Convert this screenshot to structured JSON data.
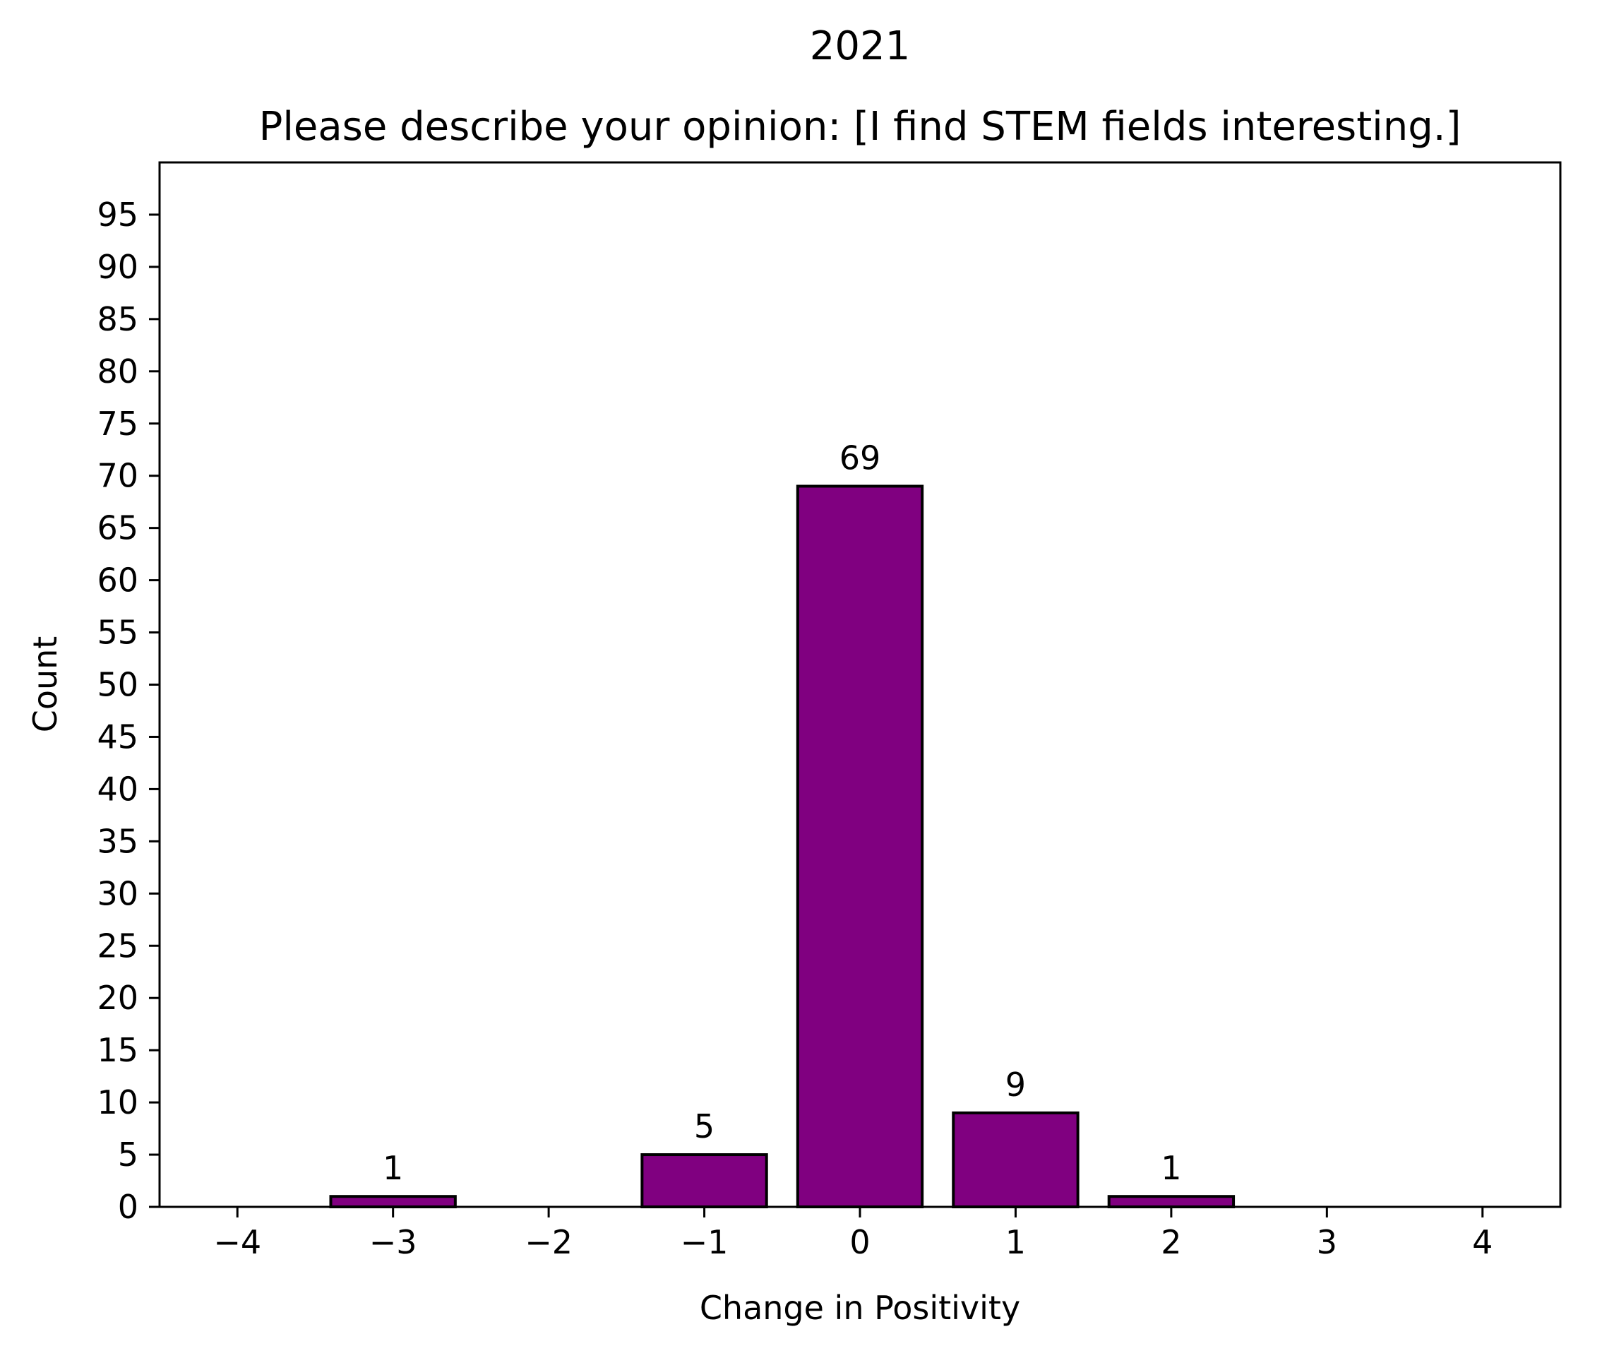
{
  "chart_data": {
    "type": "bar",
    "suptitle": "2021",
    "title": "Please describe your opinion: [I find STEM fields interesting.]",
    "xlabel": "Change in Positivity",
    "ylabel": "Count",
    "x": [
      -3,
      -1,
      0,
      1,
      2
    ],
    "values": [
      1,
      5,
      69,
      9,
      1
    ],
    "data_labels": [
      "1",
      "5",
      "69",
      "9",
      "1"
    ],
    "xlim": [
      -4.5,
      4.5
    ],
    "ylim": [
      0,
      100
    ],
    "x_ticks": [
      -4,
      -3,
      -2,
      -1,
      0,
      1,
      2,
      3,
      4
    ],
    "x_tick_labels": [
      "−4",
      "−3",
      "−2",
      "−1",
      "0",
      "1",
      "2",
      "3",
      "4"
    ],
    "y_ticks": [
      0,
      5,
      10,
      15,
      20,
      25,
      30,
      35,
      40,
      45,
      50,
      55,
      60,
      65,
      70,
      75,
      80,
      85,
      90,
      95
    ],
    "y_tick_labels": [
      "0",
      "5",
      "10",
      "15",
      "20",
      "25",
      "30",
      "35",
      "40",
      "45",
      "50",
      "55",
      "60",
      "65",
      "70",
      "75",
      "80",
      "85",
      "90",
      "95"
    ],
    "bar_width": 0.8,
    "bar_color": "#800080",
    "edge_color": "#000000",
    "grid": false,
    "legend": "none"
  }
}
